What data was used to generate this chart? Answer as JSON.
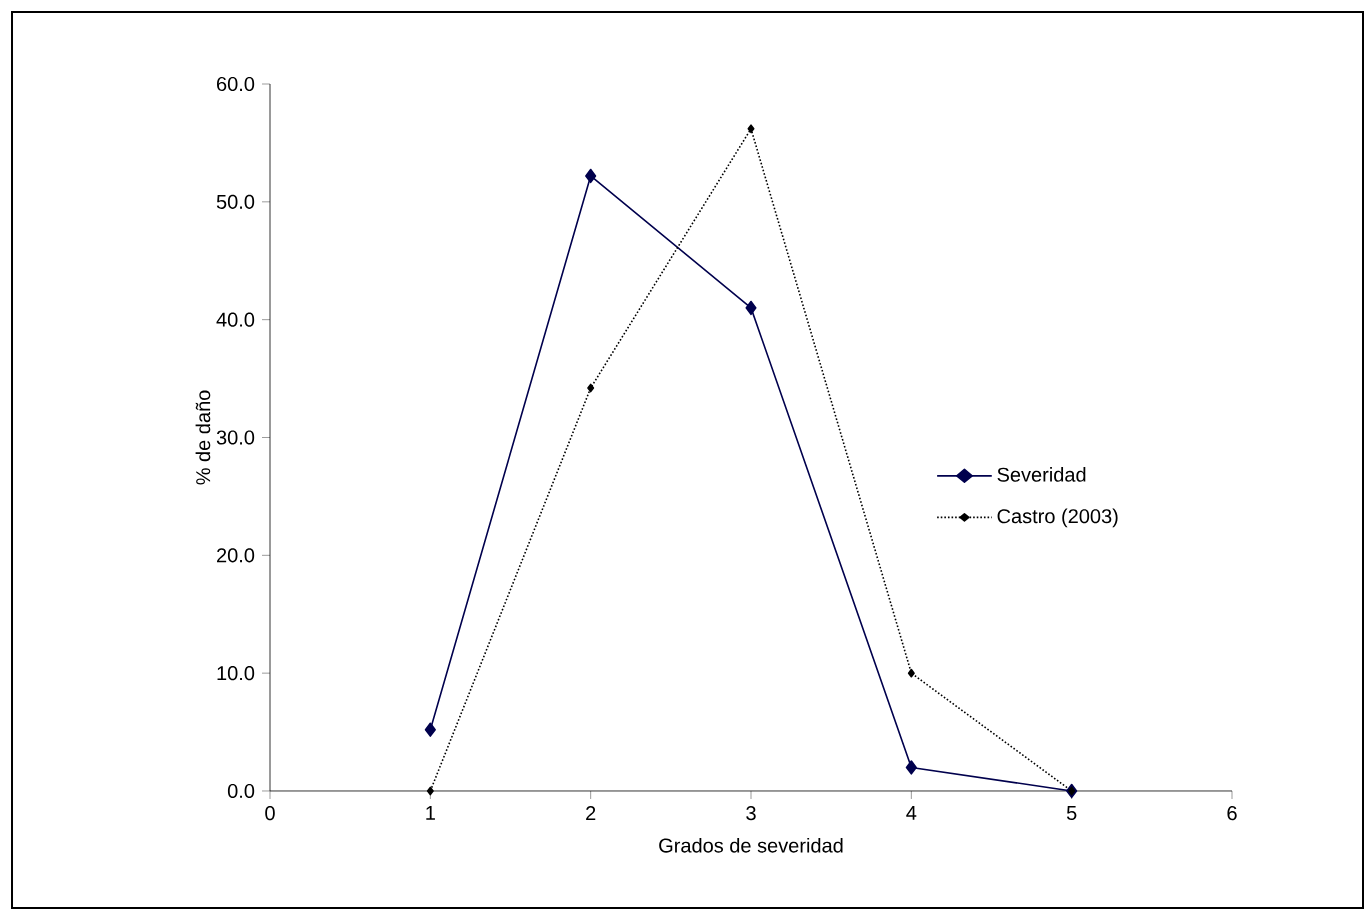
{
  "chart_data": {
    "type": "line",
    "xlabel": "Grados de severidad",
    "ylabel": "% de daño",
    "xlim": [
      0,
      6
    ],
    "xticks": [
      0,
      1,
      2,
      3,
      4,
      5,
      6
    ],
    "ylim": [
      0,
      60
    ],
    "yticks": [
      {
        "value": 0,
        "label": "0.0"
      },
      {
        "value": 10,
        "label": "10.0"
      },
      {
        "value": 20,
        "label": "20.0"
      },
      {
        "value": 30,
        "label": "30.0"
      },
      {
        "value": 40,
        "label": "40.0"
      },
      {
        "value": 50,
        "label": "50.0"
      },
      {
        "value": 60,
        "label": "60.0"
      }
    ],
    "x": [
      1,
      2,
      3,
      4,
      5
    ],
    "grid": false,
    "legend": "right",
    "series": [
      {
        "name": "Severidad",
        "color": "#00004d",
        "values": [
          5.2,
          52.2,
          41.0,
          2.0,
          0.0
        ],
        "marker": "diamond",
        "line_style": "solid"
      },
      {
        "name": "Castro (2003)",
        "color": "#000000",
        "values": [
          0.0,
          34.2,
          56.2,
          10.0,
          0.0
        ],
        "marker": "diamond",
        "line_style": "dotted"
      }
    ]
  }
}
